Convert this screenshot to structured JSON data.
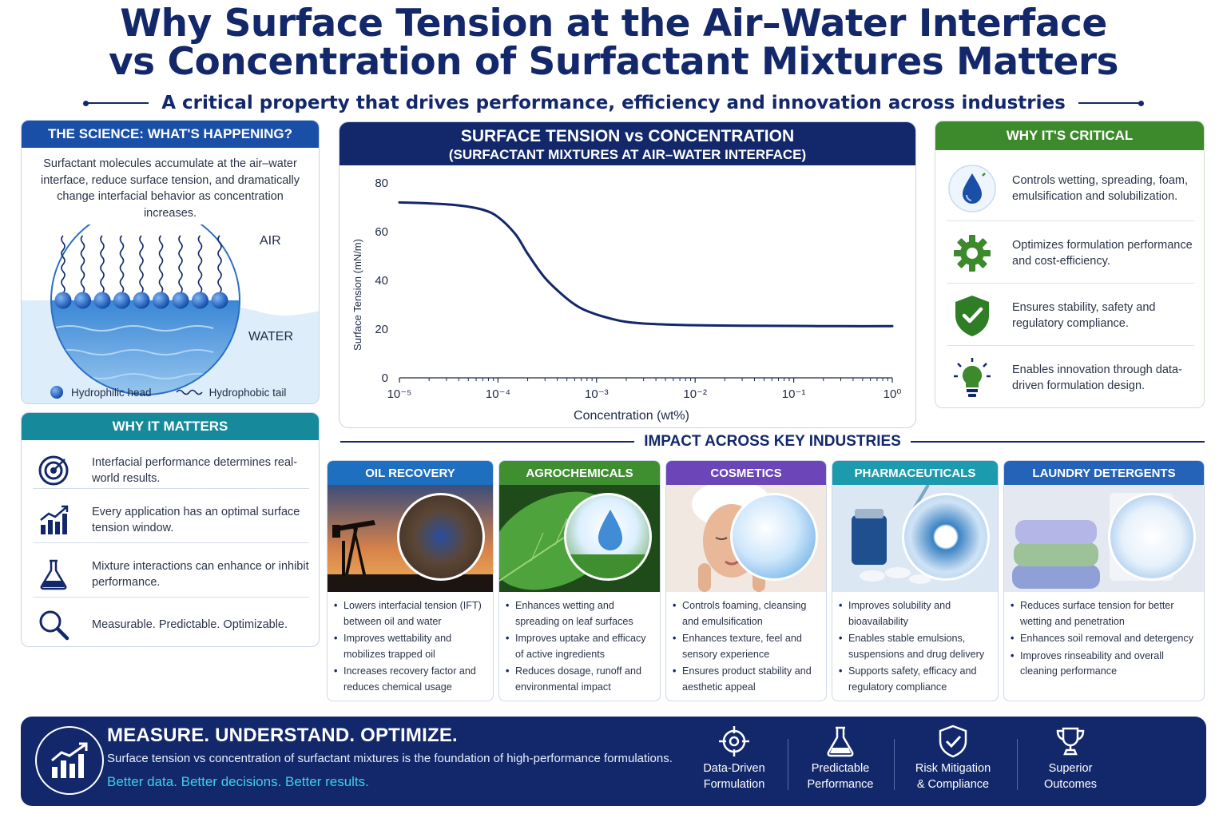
{
  "title_line1": "Why Surface Tension at the Air–Water Interface",
  "title_line2": "vs Concentration of Surfactant Mixtures Matters",
  "subtitle": "A critical property that drives performance, efficiency and innovation across industries",
  "science": {
    "heading": "THE SCIENCE: WHAT'S HAPPENING?",
    "text": "Surfactant molecules accumulate at the air–water interface, reduce surface tension, and dramatically change interfacial behavior as concentration increases.",
    "air_label": "AIR",
    "water_label": "WATER",
    "legend_head": "Hydrophilic head",
    "legend_tail": "Hydrophobic tail"
  },
  "matters": {
    "heading": "WHY IT MATTERS",
    "items": [
      {
        "icon": "target-icon",
        "text": "Interfacial performance determines real-world results."
      },
      {
        "icon": "bar-chart-icon",
        "text": "Every application has an optimal surface tension window."
      },
      {
        "icon": "flask-icon",
        "text": "Mixture interactions can enhance or inhibit performance."
      },
      {
        "icon": "magnifier-icon",
        "text": "Measurable. Predictable. Optimizable."
      }
    ]
  },
  "chart_title_1": "SURFACE TENSION vs CONCENTRATION",
  "chart_title_2": "(SURFACTANT MIXTURES AT AIR–WATER INTERFACE)",
  "chart_data": {
    "type": "line",
    "title": "SURFACE TENSION vs CONCENTRATION",
    "subtitle": "(SURFACTANT MIXTURES AT AIR–WATER INTERFACE)",
    "xlabel": "Concentration (wt%)",
    "ylabel": "Surface Tension (mN/m)",
    "xscale": "log",
    "xlim": [
      1e-05,
      1
    ],
    "ylim": [
      0,
      80
    ],
    "x_tick_labels": [
      "10⁻⁵",
      "10⁻⁴",
      "10⁻³",
      "10⁻²",
      "10⁻¹",
      "10⁰"
    ],
    "y_ticks": [
      0,
      20,
      40,
      60,
      80
    ],
    "grid": false,
    "series": [
      {
        "color": "#13286b",
        "x": [
          1e-05,
          2e-05,
          4e-05,
          7e-05,
          0.0001,
          0.00015,
          0.0002,
          0.0003,
          0.0005,
          0.0007,
          0.001,
          0.0015,
          0.002,
          0.003,
          0.005,
          0.01,
          0.03,
          0.1,
          0.3,
          1
        ],
        "y": [
          72,
          71.6,
          70.8,
          69,
          66,
          59,
          51,
          41,
          32.5,
          28.5,
          26,
          24,
          23,
          22.3,
          21.9,
          21.6,
          21.4,
          21.3,
          21.2,
          21.2
        ]
      }
    ]
  },
  "critical": {
    "heading": "WHY IT'S CRITICAL",
    "items": [
      {
        "icon": "water-drop-icon",
        "text": "Controls wetting, spreading, foam, emulsification and solubilization."
      },
      {
        "icon": "gear-icon",
        "text": "Optimizes formulation performance and cost-efficiency."
      },
      {
        "icon": "shield-check-icon",
        "text": "Ensures stability, safety and regulatory compliance."
      },
      {
        "icon": "lightbulb-icon",
        "text": "Enables innovation through data-driven formulation design."
      }
    ]
  },
  "industries_title": "IMPACT ACROSS KEY INDUSTRIES",
  "industries": [
    {
      "name": "OIL RECOVERY",
      "color": "#1f6fc0",
      "bullets": [
        "Lowers interfacial tension (IFT) between oil and water",
        "Improves wettability and mobilizes trapped oil",
        "Increases recovery factor and reduces chemical usage"
      ]
    },
    {
      "name": "AGROCHEMICALS",
      "color": "#3f8f31",
      "bullets": [
        "Enhances wetting and spreading on leaf surfaces",
        "Improves uptake and efficacy of active ingredients",
        "Reduces dosage, runoff and environmental impact"
      ]
    },
    {
      "name": "COSMETICS",
      "color": "#6c46b8",
      "bullets": [
        "Controls foaming, cleansing and emulsification",
        "Enhances texture, feel and sensory experience",
        "Ensures product stability and aesthetic appeal"
      ]
    },
    {
      "name": "PHARMACEUTICALS",
      "color": "#1c9aae",
      "bullets": [
        "Improves solubility and bioavailability",
        "Enables stable emulsions, suspensions and drug delivery",
        "Supports safety, efficacy and regulatory compliance"
      ]
    },
    {
      "name": "LAUNDRY DETERGENTS",
      "color": "#2563b8",
      "bullets": [
        "Reduces surface tension for better wetting and penetration",
        "Enhances soil removal and detergency",
        "Improves rinseability and overall cleaning performance"
      ]
    }
  ],
  "footer": {
    "heading": "MEASURE. UNDERSTAND. OPTIMIZE.",
    "text": "Surface tension vs concentration of surfactant mixtures is the foundation of high-performance formulations.",
    "tagline": "Better data. Better decisions. Better results.",
    "features": [
      {
        "icon": "crosshair-icon",
        "line1": "Data-Driven",
        "line2": "Formulation"
      },
      {
        "icon": "flask-icon",
        "line1": "Predictable",
        "line2": "Performance"
      },
      {
        "icon": "shield-check-icon",
        "line1": "Risk Mitigation",
        "line2": "& Compliance"
      },
      {
        "icon": "trophy-icon",
        "line1": "Superior",
        "line2": "Outcomes"
      }
    ]
  }
}
